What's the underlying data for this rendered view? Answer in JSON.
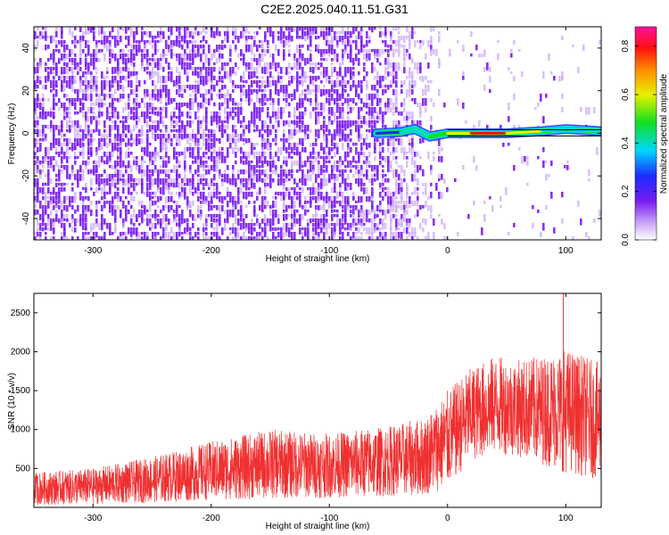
{
  "title": "C2E2.2025.040.11.51.G31",
  "colors": {
    "noise": "#7a1cf0",
    "noise_light": "#c9a6f7",
    "snr_line": "#f03030",
    "axis": "#000000"
  },
  "chart_data": [
    {
      "type": "heatmap",
      "xlabel": "Height of straight line (km)",
      "ylabel": "Frequency (Hz)",
      "xlim": [
        -350,
        130
      ],
      "ylim": [
        -50,
        50
      ],
      "xticks": [
        -300,
        -200,
        -100,
        0,
        100
      ],
      "yticks": [
        -40,
        -20,
        0,
        20,
        40
      ],
      "colorbar": {
        "label": "Normalized spectral amplitude",
        "range": [
          0,
          0.88
        ],
        "ticks": [
          0.0,
          0.2,
          0.4,
          0.6,
          0.8
        ],
        "colormap": "rainbow (white-purple-blue-cyan-green-yellow-red-magenta)"
      },
      "noise_region_km": [
        -350,
        -50
      ],
      "fade_region_km": [
        -50,
        0
      ],
      "signal_band": {
        "frequency_hz": 0,
        "start_km": -60,
        "end_km": 130,
        "peak_amplitude": 0.88,
        "trace_points": [
          {
            "x": -60,
            "y": 0.0,
            "amp": 0.35
          },
          {
            "x": -40,
            "y": 0.5,
            "amp": 0.4
          },
          {
            "x": -28,
            "y": 2.0,
            "amp": 0.45
          },
          {
            "x": -15,
            "y": -1.5,
            "amp": 0.4
          },
          {
            "x": 0,
            "y": 0.0,
            "amp": 0.6
          },
          {
            "x": 20,
            "y": 0.0,
            "amp": 0.85
          },
          {
            "x": 50,
            "y": 0.0,
            "amp": 0.88
          },
          {
            "x": 80,
            "y": 1.0,
            "amp": 0.5
          },
          {
            "x": 100,
            "y": 2.0,
            "amp": 0.4
          },
          {
            "x": 130,
            "y": 1.0,
            "amp": 0.45
          }
        ]
      }
    },
    {
      "type": "line",
      "xlabel": "Height of straight line (km)",
      "ylabel": "SNR (10 * v/v)",
      "xlim": [
        -350,
        130
      ],
      "ylim": [
        0,
        2750
      ],
      "xticks": [
        -300,
        -200,
        -100,
        0,
        100
      ],
      "yticks": [
        500,
        1000,
        1500,
        2000,
        2500
      ],
      "series": [
        {
          "envelope": [
            {
              "x": -350,
              "min": 30,
              "max": 450
            },
            {
              "x": -300,
              "min": 40,
              "max": 500
            },
            {
              "x": -250,
              "min": 60,
              "max": 650
            },
            {
              "x": -200,
              "min": 90,
              "max": 850
            },
            {
              "x": -150,
              "min": 110,
              "max": 1000
            },
            {
              "x": -100,
              "min": 120,
              "max": 950
            },
            {
              "x": -50,
              "min": 140,
              "max": 1050
            },
            {
              "x": -20,
              "min": 150,
              "max": 1150
            },
            {
              "x": 0,
              "min": 250,
              "max": 1500
            },
            {
              "x": 20,
              "min": 600,
              "max": 1800
            },
            {
              "x": 40,
              "min": 700,
              "max": 1950
            },
            {
              "x": 60,
              "min": 650,
              "max": 1900
            },
            {
              "x": 80,
              "min": 550,
              "max": 1950
            },
            {
              "x": 100,
              "min": 450,
              "max": 2050
            },
            {
              "x": 130,
              "min": 350,
              "max": 1850
            }
          ],
          "peak": {
            "x": 98,
            "y": 2750
          }
        }
      ]
    }
  ]
}
